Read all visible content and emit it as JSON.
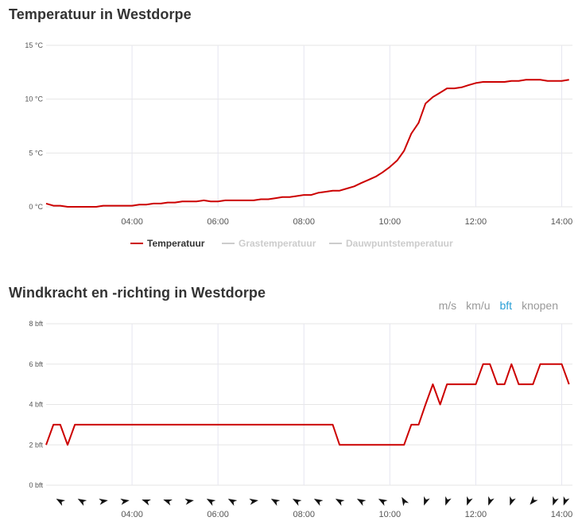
{
  "temperature": {
    "title": "Temperatuur in Westdorpe",
    "legend": [
      {
        "label": "Temperatuur",
        "color": "#cc0000",
        "active": true
      },
      {
        "label": "Grastemperatuur",
        "color": "#cccccc",
        "active": false
      },
      {
        "label": "Dauwpuntstemperatuur",
        "color": "#cccccc",
        "active": false
      }
    ]
  },
  "wind": {
    "title": "Windkracht en -richting in Westdorpe",
    "units": [
      {
        "label": "m/s",
        "active": false
      },
      {
        "label": "km/u",
        "active": false
      },
      {
        "label": "bft",
        "active": true
      },
      {
        "label": "knopen",
        "active": false
      }
    ]
  },
  "chart_data": [
    {
      "type": "line",
      "title": "Temperatuur in Westdorpe",
      "xlabel": "",
      "ylabel": "",
      "ylim": [
        0,
        15
      ],
      "yticks": [
        "0 °C",
        "5 °C",
        "10 °C",
        "15 °C"
      ],
      "xticks": [
        "04:00",
        "06:00",
        "08:00",
        "10:00",
        "12:00",
        "14:00"
      ],
      "xlim_hours": [
        2.0,
        14.25
      ],
      "grid": true,
      "legend_position": "bottom",
      "series": [
        {
          "name": "Temperatuur",
          "color": "#cc0000",
          "x": [
            2.0,
            2.17,
            2.33,
            2.5,
            2.67,
            2.83,
            3.0,
            3.17,
            3.33,
            3.5,
            3.67,
            3.83,
            4.0,
            4.17,
            4.33,
            4.5,
            4.67,
            4.83,
            5.0,
            5.17,
            5.33,
            5.5,
            5.67,
            5.83,
            6.0,
            6.17,
            6.33,
            6.5,
            6.67,
            6.83,
            7.0,
            7.17,
            7.33,
            7.5,
            7.67,
            7.83,
            8.0,
            8.17,
            8.33,
            8.5,
            8.67,
            8.83,
            9.0,
            9.17,
            9.33,
            9.5,
            9.67,
            9.83,
            10.0,
            10.17,
            10.33,
            10.5,
            10.67,
            10.83,
            11.0,
            11.17,
            11.33,
            11.5,
            11.67,
            11.83,
            12.0,
            12.17,
            12.33,
            12.5,
            12.67,
            12.83,
            13.0,
            13.17,
            13.33,
            13.5,
            13.67,
            13.83,
            14.0,
            14.17
          ],
          "values": [
            0.3,
            0.1,
            0.1,
            0.0,
            0.0,
            0.0,
            0.0,
            0.0,
            0.1,
            0.1,
            0.1,
            0.1,
            0.1,
            0.2,
            0.2,
            0.3,
            0.3,
            0.4,
            0.4,
            0.5,
            0.5,
            0.5,
            0.6,
            0.5,
            0.5,
            0.6,
            0.6,
            0.6,
            0.6,
            0.6,
            0.7,
            0.7,
            0.8,
            0.9,
            0.9,
            1.0,
            1.1,
            1.1,
            1.3,
            1.4,
            1.5,
            1.5,
            1.7,
            1.9,
            2.2,
            2.5,
            2.8,
            3.2,
            3.7,
            4.3,
            5.2,
            6.8,
            7.8,
            9.6,
            10.2,
            10.6,
            11.0,
            11.0,
            11.1,
            11.3,
            11.5,
            11.6,
            11.6,
            11.6,
            11.6,
            11.7,
            11.7,
            11.8,
            11.8,
            11.8,
            11.7,
            11.7,
            11.7,
            11.8
          ]
        }
      ]
    },
    {
      "type": "line",
      "title": "Windkracht en -richting in Westdorpe",
      "xlabel": "",
      "ylabel": "",
      "ylim": [
        0,
        8
      ],
      "yticks": [
        "0 bft",
        "2 bft",
        "4 bft",
        "6 bft",
        "8 bft"
      ],
      "xticks": [
        "04:00",
        "06:00",
        "08:00",
        "10:00",
        "12:00",
        "14:00"
      ],
      "xlim_hours": [
        2.0,
        14.25
      ],
      "grid": true,
      "series": [
        {
          "name": "Windkracht",
          "color": "#cc0000",
          "x": [
            2.0,
            2.17,
            2.33,
            2.5,
            2.67,
            2.83,
            3.0,
            8.5,
            8.67,
            8.83,
            9.0,
            9.17,
            9.33,
            9.5,
            9.67,
            9.83,
            10.0,
            10.17,
            10.33,
            10.5,
            10.67,
            10.83,
            11.0,
            11.17,
            11.33,
            11.5,
            11.67,
            11.83,
            12.0,
            12.17,
            12.33,
            12.5,
            12.67,
            12.83,
            13.0,
            13.17,
            13.33,
            13.5,
            13.67,
            13.83,
            14.0,
            14.17
          ],
          "values": [
            2,
            3,
            3,
            2,
            3,
            3,
            3,
            3,
            3,
            2,
            2,
            2,
            2,
            2,
            2,
            2,
            2,
            2,
            2,
            3,
            3,
            4,
            5,
            4,
            5,
            5,
            5,
            5,
            5,
            6,
            6,
            5,
            5,
            6,
            5,
            5,
            5,
            6,
            6,
            6,
            6,
            5
          ]
        }
      ],
      "wind_directions": {
        "x": [
          2.33,
          2.83,
          3.33,
          3.83,
          4.33,
          4.83,
          5.33,
          5.83,
          6.33,
          6.83,
          7.33,
          7.83,
          8.33,
          8.83,
          9.33,
          9.83,
          10.33,
          10.83,
          11.33,
          11.83,
          12.33,
          12.83,
          13.33,
          13.83,
          14.08
        ],
        "degrees": [
          300,
          300,
          80,
          80,
          290,
          290,
          80,
          300,
          300,
          80,
          300,
          300,
          300,
          300,
          300,
          300,
          330,
          200,
          200,
          200,
          200,
          200,
          220,
          200,
          200
        ]
      }
    }
  ]
}
